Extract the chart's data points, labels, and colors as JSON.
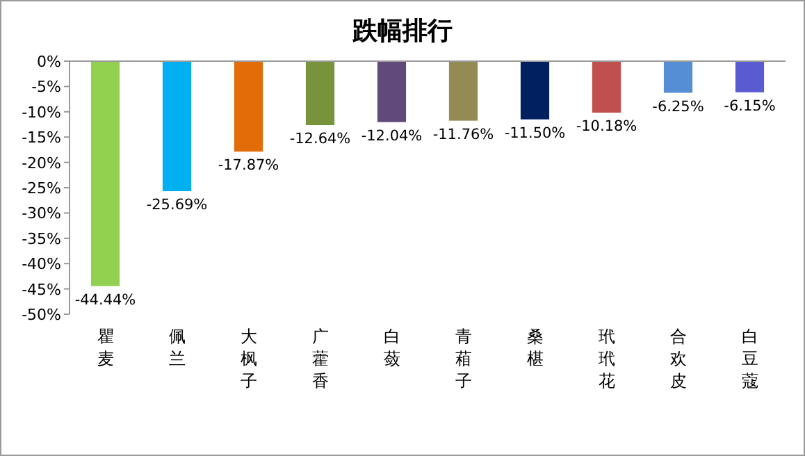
{
  "chart_data": {
    "type": "bar",
    "title": "跌幅排行",
    "categories": [
      "瞿麦",
      "佩兰",
      "大枫子",
      "广藿香",
      "白蔹",
      "青葙子",
      "桑椹",
      "玳玳花",
      "合欢皮",
      "白豆蔻"
    ],
    "values": [
      -44.44,
      -25.69,
      -17.87,
      -12.64,
      -12.04,
      -11.76,
      -11.5,
      -10.18,
      -6.25,
      -6.15
    ],
    "colors": [
      "#92d050",
      "#00b0f0",
      "#e36c09",
      "#77933c",
      "#604a7b",
      "#948a54",
      "#002060",
      "#c0504d",
      "#558ed5",
      "#5b5bd1"
    ],
    "value_labels": [
      "-44.44%",
      "-25.69%",
      "-17.87%",
      "-12.64%",
      "-12.04%",
      "-11.76%",
      "-11.50%",
      "-10.18%",
      "-6.25%",
      "-6.15%"
    ],
    "ylim": [
      -50,
      0
    ],
    "yticks": [
      {
        "value": 0,
        "label": "0%"
      },
      {
        "value": -5,
        "label": "-5%"
      },
      {
        "value": -10,
        "label": "-10%"
      },
      {
        "value": -15,
        "label": "-15%"
      },
      {
        "value": -20,
        "label": "-20%"
      },
      {
        "value": -25,
        "label": "-25%"
      },
      {
        "value": -30,
        "label": "-30%"
      },
      {
        "value": -35,
        "label": "-35%"
      },
      {
        "value": -40,
        "label": "-40%"
      },
      {
        "value": -45,
        "label": "-45%"
      },
      {
        "value": -50,
        "label": "-50%"
      }
    ],
    "grid": false
  }
}
